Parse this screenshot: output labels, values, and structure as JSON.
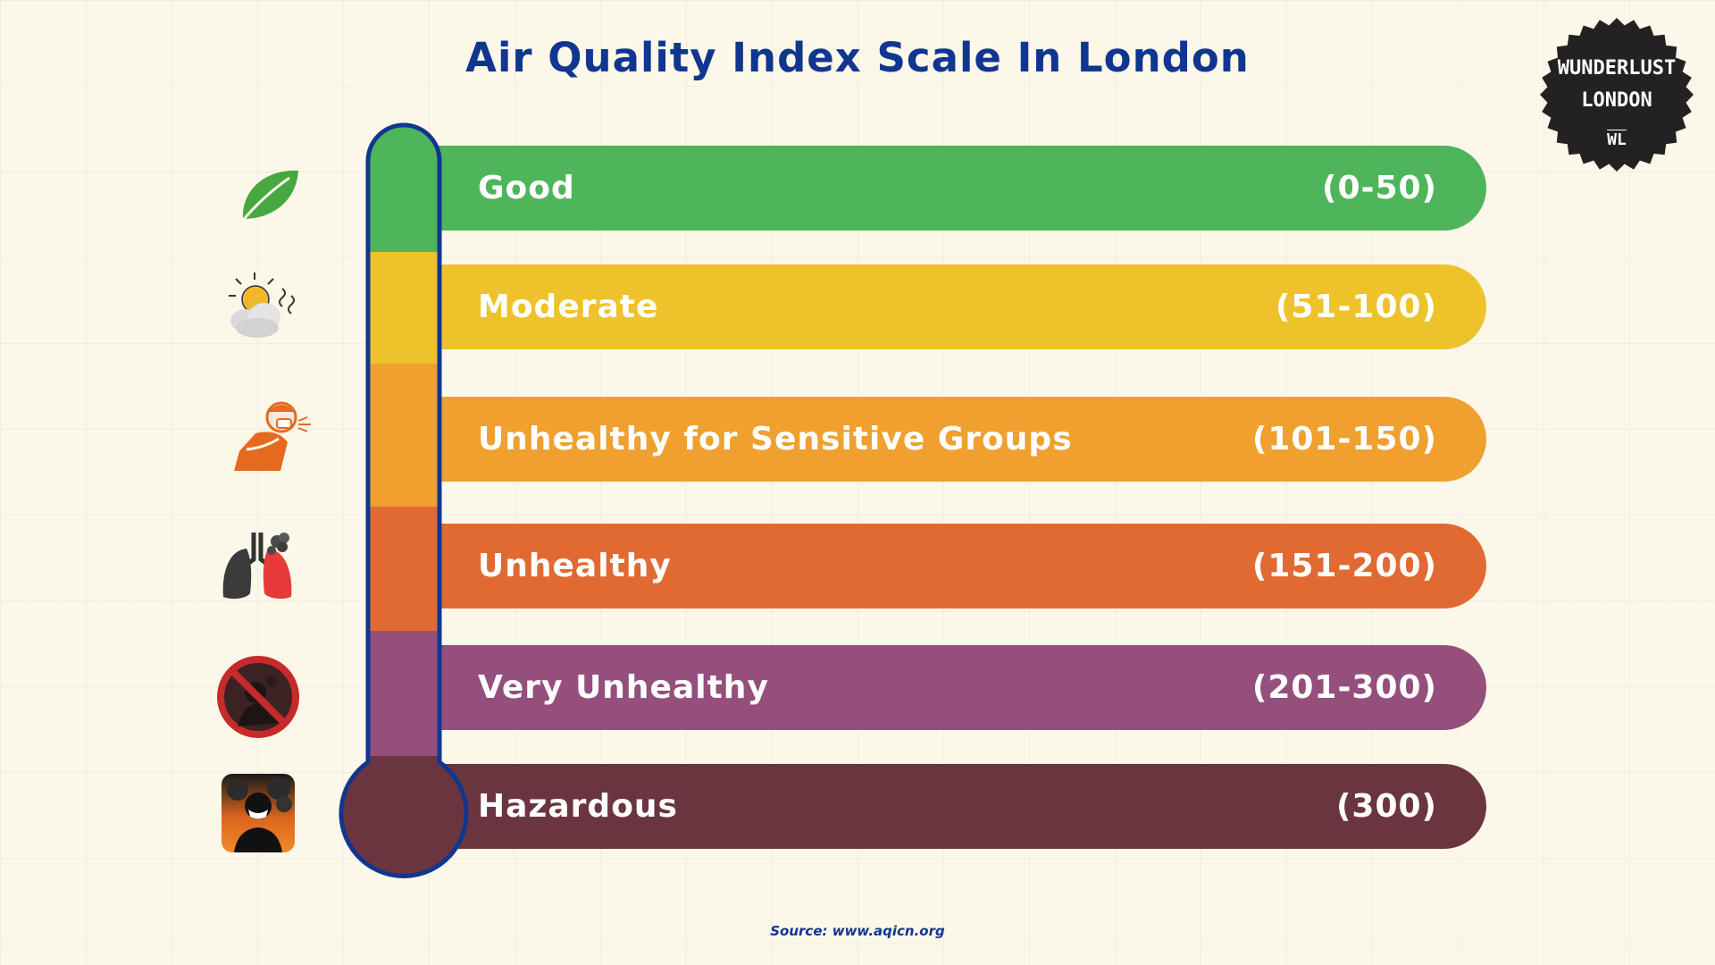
{
  "title": "Air Quality Index Scale In London",
  "source": "Source: www.aqicn.org",
  "logo": {
    "line1": "WUNDERLUST",
    "line2": "LONDON",
    "mark": "WL"
  },
  "chart_data": {
    "type": "table",
    "title": "Air Quality Index Scale In London",
    "categories": [
      "Good",
      "Moderate",
      "Unhealthy for Sensitive Groups",
      "Unhealthy",
      "Very Unhealthy",
      "Hazardous"
    ],
    "ranges": [
      "(0-50)",
      "(51-100)",
      "(101-150)",
      "(151-200)",
      "(201-300)",
      "(300)"
    ],
    "colors": [
      "#4eb55a",
      "#eec22a",
      "#efa02e",
      "#e16a33",
      "#944f7c",
      "#6b3540"
    ],
    "icons": [
      "leaf-icon",
      "sun-cloud-smoke-icon",
      "coughing-person-icon",
      "lungs-smoke-icon",
      "no-smoking-icon",
      "mask-smoke-icon"
    ]
  }
}
